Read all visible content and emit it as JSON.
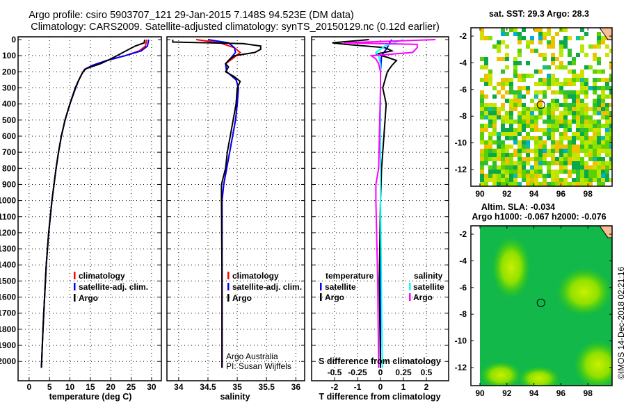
{
  "title": {
    "line1": "Argo profile: csiro 5903707_121 29-Jan-2015 7.148S 94.523E (DM data)",
    "line2": "Climatology: CARS2009. Satellite-adjusted climatology: synTS_20150129.nc (0.12d earlier)"
  },
  "colors": {
    "climatology": "#ff0000",
    "satellite": "#0000ff",
    "argo": "#000000",
    "sal_satellite": "#00ffff",
    "sal_argo": "#ff00ff"
  },
  "chart_data": [
    {
      "type": "line",
      "name": "temperature",
      "xlabel": "temperature (deg C)",
      "ylabel": "",
      "xlim": [
        -2.7,
        32.4
      ],
      "ylim": [
        2120,
        0
      ],
      "xticks": [
        "0",
        "5",
        "10",
        "15",
        "20",
        "25",
        "30"
      ],
      "xtick_values": [
        0,
        5,
        10,
        15,
        20,
        25,
        30
      ],
      "yticks": [
        "0",
        "100",
        "200",
        "300",
        "400",
        "500",
        "600",
        "700",
        "800",
        "900",
        "1000",
        "1100",
        "1200",
        "1300",
        "1400",
        "1500",
        "1600",
        "1700",
        "1800",
        "1900",
        "2000"
      ],
      "ytick_values": [
        0,
        100,
        200,
        300,
        400,
        500,
        600,
        700,
        800,
        900,
        1000,
        1100,
        1200,
        1300,
        1400,
        1500,
        1600,
        1700,
        1800,
        1900,
        2000
      ],
      "legend": [
        "climatology",
        "satellite-adj. clim.",
        "Argo"
      ],
      "series": [
        {
          "name": "climatology",
          "color": "#ff0000",
          "depth": [
            0,
            40,
            70,
            100,
            130,
            160,
            185,
            210,
            250,
            300,
            400,
            500,
            600,
            700,
            800,
            1000,
            1200,
            1400,
            1600,
            1800,
            2040
          ],
          "values": [
            28.8,
            28.5,
            27,
            23.5,
            19,
            15.5,
            13.6,
            13,
            12.2,
            11.4,
            10,
            8.8,
            7.9,
            7.2,
            6.6,
            5.6,
            4.8,
            4.2,
            3.8,
            3.4,
            3.0
          ]
        },
        {
          "name": "satellite-adj. clim.",
          "color": "#0000ff",
          "depth": [
            0,
            40,
            70,
            100,
            130,
            160,
            185,
            210,
            250,
            300,
            400,
            500,
            600,
            700,
            800,
            1000,
            1200,
            1400,
            1600,
            1800,
            2040
          ],
          "values": [
            29.3,
            29,
            27.5,
            23.5,
            19,
            15.5,
            13.6,
            13,
            12.2,
            11.4,
            10,
            8.8,
            7.9,
            7.2,
            6.6,
            5.6,
            4.8,
            4.2,
            3.8,
            3.4,
            3.0
          ]
        },
        {
          "name": "Argo",
          "color": "#000000",
          "depth": [
            0,
            20,
            40,
            60,
            80,
            100,
            120,
            150,
            180,
            200,
            230,
            260,
            300,
            400,
            500,
            600,
            700,
            800,
            1000,
            1200,
            1400,
            1600,
            1800,
            2040
          ],
          "values": [
            28.3,
            28.2,
            26,
            24.5,
            23,
            21.5,
            20,
            17.5,
            14,
            13.2,
            12.6,
            12,
            11.3,
            10,
            8.8,
            7.9,
            7.2,
            6.6,
            5.6,
            4.8,
            4.2,
            3.8,
            3.4,
            3.0
          ]
        }
      ]
    },
    {
      "type": "line",
      "name": "salinity",
      "xlabel": "salinity",
      "xlim": [
        33.8,
        36.15
      ],
      "ylim": [
        2120,
        0
      ],
      "xticks": [
        "34",
        "34.5",
        "35",
        "35.5",
        "36"
      ],
      "xtick_values": [
        34,
        34.5,
        35,
        35.5,
        36
      ],
      "legend": [
        "climatology",
        "satellite-adj. clim.",
        "Argo"
      ],
      "annotations": [
        "Argo Australia",
        "PI: Susan Wijffels"
      ],
      "series": [
        {
          "name": "climatology",
          "color": "#ff0000",
          "depth": [
            0,
            20,
            50,
            80,
            110,
            150,
            200,
            250,
            300,
            400,
            500,
            600,
            700,
            800,
            900,
            1000,
            1500,
            2040
          ],
          "values": [
            34.3,
            34.7,
            34.95,
            35.05,
            34.95,
            34.8,
            34.82,
            34.98,
            35.02,
            35.0,
            34.97,
            34.92,
            34.87,
            34.82,
            34.77,
            34.74,
            34.74,
            34.74
          ]
        },
        {
          "name": "satellite-adj. clim.",
          "color": "#0000ff",
          "depth": [
            0,
            20,
            50,
            80,
            110,
            150,
            200,
            250,
            300,
            400,
            500,
            600,
            700,
            800,
            900,
            1000,
            1500,
            2040
          ],
          "values": [
            34.5,
            34.85,
            34.95,
            34.97,
            34.9,
            34.8,
            34.82,
            34.98,
            35.02,
            35.0,
            34.97,
            34.92,
            34.87,
            34.82,
            34.77,
            34.74,
            34.74,
            34.74
          ]
        },
        {
          "name": "Argo",
          "color": "#000000",
          "depth": [
            0,
            15,
            25,
            40,
            60,
            80,
            100,
            130,
            150,
            170,
            200,
            230,
            260,
            300,
            400,
            500,
            600,
            700,
            800,
            900,
            1000,
            1500,
            2040
          ],
          "values": [
            33.9,
            33.9,
            35.1,
            35.4,
            35.4,
            35.3,
            34.95,
            34.85,
            34.8,
            34.85,
            34.8,
            34.95,
            35.05,
            35.0,
            34.98,
            34.93,
            34.88,
            34.83,
            34.8,
            34.73,
            34.73,
            34.74,
            34.74
          ]
        }
      ]
    },
    {
      "type": "line",
      "name": "difference",
      "xlabel": "T difference from climatology",
      "xlim": [
        -3,
        2.97
      ],
      "ylim": [
        2120,
        0
      ],
      "xticks": [
        "-2",
        "-1",
        "0",
        "1",
        "2"
      ],
      "xtick_values": [
        -2,
        -1,
        0,
        1,
        2
      ],
      "secondary_xlabel": "S difference from climatology",
      "secondary_xticks": [
        "-0.5",
        "-0.25",
        "0",
        "0.25",
        "0.5"
      ],
      "secondary_xtick_values": [
        -0.5,
        -0.25,
        0,
        0.25,
        0.5
      ],
      "legend_temperature": {
        "title": "temperature",
        "items": [
          "satellite",
          "Argo"
        ]
      },
      "legend_salinity": {
        "title": "salinity",
        "items": [
          "satellite",
          "Argo"
        ]
      },
      "series": [
        {
          "name": "T satellite",
          "color": "#0000ff",
          "axis": "T",
          "depth": [
            0,
            20,
            50,
            100,
            200,
            400,
            1000,
            2040
          ],
          "values": [
            0.5,
            0.4,
            0.3,
            0.05,
            0,
            0,
            0,
            0
          ]
        },
        {
          "name": "T Argo",
          "color": "#000000",
          "axis": "T",
          "depth": [
            0,
            20,
            30,
            50,
            70,
            90,
            110,
            130,
            160,
            200,
            300,
            400,
            500,
            700,
            800,
            1000,
            1500,
            2040
          ],
          "values": [
            -0.5,
            -2.1,
            -1.5,
            0.2,
            0.5,
            -0.2,
            0.3,
            0.7,
            0.5,
            0.3,
            0.1,
            0.25,
            0.2,
            0.1,
            0.05,
            0,
            -0.05,
            0
          ]
        },
        {
          "name": "S satellite",
          "color": "#00ffff",
          "axis": "S",
          "depth": [
            0,
            20,
            40,
            80,
            100,
            150,
            200,
            400,
            800,
            1000,
            2040
          ],
          "values": [
            0.25,
            0.15,
            0.05,
            -0.05,
            -0.02,
            0,
            0,
            0,
            0,
            0,
            0.02
          ]
        },
        {
          "name": "S Argo",
          "color": "#ff00ff",
          "axis": "S",
          "depth": [
            0,
            20,
            30,
            50,
            80,
            100,
            120,
            150,
            200,
            300,
            800,
            900,
            1000,
            1500,
            2040
          ],
          "values": [
            0.6,
            -0.4,
            0.4,
            0.4,
            0.35,
            -0.1,
            -0.05,
            -0.02,
            0,
            0,
            -0.02,
            -0.05,
            -0.05,
            -0.03,
            -0.02
          ]
        }
      ]
    },
    {
      "type": "heatmap",
      "name": "sst-map",
      "title": "sat. SST: 29.3 Argo: 28.3",
      "xlim": [
        89.3,
        99.6
      ],
      "ylim": [
        -13.2,
        -1.3
      ],
      "xticks": [
        "90",
        "92",
        "94",
        "96",
        "98"
      ],
      "xtick_values": [
        90,
        92,
        94,
        96,
        98
      ],
      "yticks": [
        "-2",
        "-4",
        "-6",
        "-8",
        "-10",
        "-12"
      ],
      "ytick_values": [
        -2,
        -4,
        -6,
        -8,
        -10,
        -12
      ],
      "marker": {
        "lon": 94.523,
        "lat": -7.148
      }
    },
    {
      "type": "heatmap",
      "name": "sla-map",
      "title": "Altim. SLA: -0.034",
      "subtitle": "Argo h1000: -0.067 h2000: -0.076",
      "xlim": [
        89.3,
        99.6
      ],
      "ylim": [
        -13.2,
        -1.3
      ],
      "xticks": [
        "90",
        "92",
        "94",
        "96",
        "98"
      ],
      "xtick_values": [
        90,
        92,
        94,
        96,
        98
      ],
      "yticks": [
        "-2",
        "-4",
        "-6",
        "-8",
        "-10",
        "-12"
      ],
      "ytick_values": [
        -2,
        -4,
        -6,
        -8,
        -10,
        -12
      ],
      "marker": {
        "lon": 94.523,
        "lat": -7.148
      }
    }
  ],
  "footer": {
    "credit": "©IMOS 14-Dec-2018 02:21:16"
  }
}
